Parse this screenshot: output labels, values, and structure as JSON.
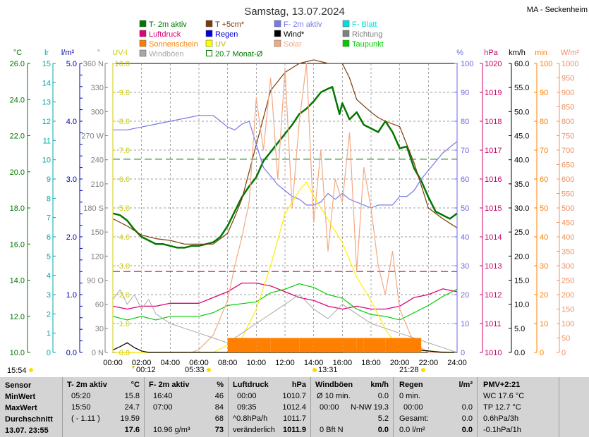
{
  "title": "Samstag, 13.07.2024",
  "station": "MA - Seckenheim",
  "legend": [
    {
      "label": "T- 2m aktiv",
      "color": "#007700",
      "style": "fill"
    },
    {
      "label": "T +5cm*",
      "color": "#7a3b0c",
      "style": "fill"
    },
    {
      "label": "F- 2m aktiv",
      "color": "#7878e8",
      "style": "fill"
    },
    {
      "label": "F- Blatt",
      "color": "#00dddd",
      "style": "fill"
    },
    {
      "label": "Luftdruck",
      "color": "#dd0077",
      "style": "fill"
    },
    {
      "label": "Regen",
      "color": "#0000dd",
      "style": "fill"
    },
    {
      "label": "Wind*",
      "color": "#000000",
      "style": "fill"
    },
    {
      "label": "Richtung",
      "color": "#808080",
      "style": "fill"
    },
    {
      "label": "Sonnenschein",
      "color": "#ff8000",
      "style": "fill"
    },
    {
      "label": "UV",
      "color": "#ffff00",
      "style": "fill"
    },
    {
      "label": "Solar",
      "color": "#f4a882",
      "style": "fill"
    },
    {
      "label": "Taupunkt",
      "color": "#00cc00",
      "style": "fill"
    },
    {
      "label": "Windböen",
      "color": "#a8a8a8",
      "style": "fill"
    },
    {
      "label": "20.7 Monat-Ø",
      "color": "#007700",
      "style": "outline"
    }
  ],
  "axis_headers": {
    "temp": "°C",
    "lr": "lr",
    "lm2": "l/m²",
    "dir": "°",
    "uv": "UV-I",
    "hum": "%",
    "hpa": "hPa",
    "kmh": "km/h",
    "min": "min",
    "wm2": "W/m²"
  },
  "axis_colors": {
    "temp": "#007700",
    "lr": "#00aaaa",
    "lm2": "#0000aa",
    "dir": "#808080",
    "uv": "#cccc00",
    "hum": "#6a6ae0",
    "hpa": "#cc0066",
    "kmh": "#000000",
    "min": "#ff8000",
    "wm2": "#f09060"
  },
  "axes": {
    "temp": [
      "26.0",
      "24.0",
      "22.0",
      "20.0",
      "18.0",
      "16.0",
      "14.0",
      "12.0",
      "10.0"
    ],
    "lr": [
      "15",
      "14",
      "13",
      "12",
      "11",
      "10",
      "9",
      "8",
      "7",
      "6",
      "5",
      "4",
      "3",
      "2",
      "1",
      "0"
    ],
    "lm2": [
      "5.0",
      "",
      "",
      "",
      "",
      "4.0",
      "",
      "",
      "",
      "",
      "3.0",
      "",
      "",
      "",
      "",
      "2.0",
      "",
      "",
      "",
      "",
      "1.0",
      "",
      "",
      "",
      "",
      "0.0"
    ],
    "dir": [
      "360 N",
      "330",
      "300",
      "270 W",
      "240",
      "210",
      "180 S",
      "150",
      "120",
      "90 O",
      "60",
      "30",
      "0 N"
    ],
    "uv": [
      "10.0",
      "9.0",
      "8.0",
      "7.0",
      "6.0",
      "5.0",
      "4.0",
      "3.0",
      "2.0",
      "1.0",
      "0.0"
    ],
    "hum": [
      "100",
      "90",
      "80",
      "70",
      "60",
      "50",
      "40",
      "30",
      "20",
      "10",
      "0"
    ],
    "hpa": [
      "1020",
      "1019",
      "1018",
      "1017",
      "1016",
      "1015",
      "1014",
      "1013",
      "1012",
      "1011",
      "1010"
    ],
    "kmh": [
      "60.0",
      "55.0",
      "50.0",
      "45.0",
      "40.0",
      "35.0",
      "30.0",
      "25.0",
      "20.0",
      "15.0",
      "10.0",
      "5.0",
      "0.0"
    ],
    "min": [
      "100",
      "90",
      "80",
      "70",
      "60",
      "50",
      "40",
      "30",
      "20",
      "10",
      "0"
    ],
    "wm2": [
      "1000",
      "950",
      "900",
      "850",
      "800",
      "750",
      "700",
      "650",
      "600",
      "550",
      "500",
      "450",
      "400",
      "350",
      "300",
      "250",
      "200",
      "150",
      "100",
      "50",
      "0"
    ]
  },
  "time_labels": [
    "00:00",
    "02:00",
    "04:00",
    "06:00",
    "08:00",
    "10:00",
    "12:00",
    "14:00",
    "16:00",
    "18:00",
    "20:00",
    "22:00",
    "24:00"
  ],
  "sun_events": {
    "now": "15:54",
    "moonrise": "00:12",
    "sunrise": "05:33",
    "noon": "13:31",
    "sunset": "21:28"
  },
  "chart_data": {
    "type": "line",
    "title": "Samstag, 13.07.2024",
    "x_unit": "hours",
    "xlim": [
      0,
      24
    ],
    "temp_ylim": [
      10,
      26
    ],
    "monthly_avg_temp": 20.7,
    "pressure_ref": 1012.8,
    "series": [
      {
        "name": "T- 2m aktiv",
        "axis": "temp",
        "x": [
          0,
          0.5,
          1,
          1.5,
          2,
          2.5,
          3,
          3.5,
          4,
          4.5,
          5,
          5.5,
          6,
          6.5,
          7,
          7.5,
          8,
          8.5,
          9,
          9.5,
          10,
          10.5,
          11,
          11.5,
          12,
          12.5,
          13,
          13.5,
          14,
          14.5,
          15,
          15.3,
          15.8,
          16,
          16.5,
          17,
          17.5,
          18,
          18.5,
          19,
          19.5,
          20,
          20.5,
          21,
          21.5,
          22,
          22.5,
          23,
          23.5,
          24
        ],
        "y": [
          17.7,
          17.6,
          17.3,
          16.8,
          16.4,
          16.2,
          16.0,
          16.0,
          15.9,
          15.8,
          15.8,
          15.9,
          15.9,
          16.0,
          16.1,
          16.4,
          17.0,
          17.8,
          18.6,
          19.2,
          19.7,
          20.6,
          21.1,
          21.6,
          22.1,
          22.6,
          23.2,
          23.5,
          23.9,
          24.4,
          24.6,
          24.7,
          23.2,
          23.8,
          22.9,
          23.3,
          22.6,
          22.4,
          22.2,
          22.8,
          22.2,
          21.3,
          21.4,
          20.2,
          19.5,
          18.6,
          17.8,
          17.6,
          17.4,
          17.7
        ]
      },
      {
        "name": "T +5cm*",
        "axis": "temp",
        "x": [
          0,
          1,
          2,
          3,
          4,
          5,
          6,
          7,
          8,
          8.5,
          9,
          9.5,
          10,
          10.5,
          11,
          12,
          13,
          14,
          15,
          16,
          16.5,
          17,
          18,
          18.5,
          19,
          20,
          21,
          22,
          23,
          24
        ],
        "y": [
          17.4,
          17.0,
          16.5,
          16.3,
          16.2,
          16.0,
          16.0,
          16.0,
          16.6,
          17.5,
          18.5,
          20.0,
          21.5,
          23.0,
          24.5,
          25.5,
          26.0,
          26.2,
          26.0,
          26.0,
          25.2,
          24.0,
          23.3,
          23.0,
          22.8,
          22.5,
          20.5,
          18.0,
          17.4,
          16.9
        ]
      },
      {
        "name": "F- 2m aktiv",
        "axis": "hum",
        "x": [
          0,
          1,
          2,
          3,
          4,
          5,
          6,
          7,
          7.5,
          8,
          8.5,
          9,
          9.5,
          10,
          10.5,
          11,
          11.5,
          12,
          12.5,
          13,
          13.5,
          14,
          14.5,
          15,
          15.5,
          16,
          16.5,
          17,
          17.5,
          18,
          18.5,
          19,
          19.5,
          20,
          20.5,
          21,
          21.5,
          22,
          22.5,
          23,
          23.5,
          24
        ],
        "y": [
          77,
          77,
          78,
          79,
          80,
          81,
          82,
          82,
          80,
          78,
          77,
          79,
          80,
          72,
          64,
          61,
          58,
          56,
          54,
          53,
          51,
          51,
          52,
          55,
          53,
          55,
          53,
          52,
          51,
          50,
          51,
          51,
          51,
          54,
          54,
          56,
          60,
          63,
          66,
          69,
          71,
          73
        ]
      },
      {
        "name": "Luftdruck",
        "axis": "hpa",
        "x": [
          0,
          1,
          2,
          3,
          4,
          5,
          6,
          7,
          8,
          9,
          10,
          11,
          12,
          13,
          14,
          15,
          16,
          17,
          18,
          19,
          20,
          21,
          22,
          23,
          24
        ],
        "y": [
          1011.6,
          1011.5,
          1011.6,
          1011.6,
          1011.7,
          1011.7,
          1011.7,
          1011.9,
          1012.1,
          1012.4,
          1012.4,
          1012.3,
          1012.1,
          1011.9,
          1011.8,
          1011.6,
          1011.5,
          1011.6,
          1011.5,
          1011.5,
          1011.6,
          1011.9,
          1012.0,
          1012.2,
          1012.1
        ]
      },
      {
        "name": "Taupunkt",
        "axis": "temp",
        "x": [
          0,
          1,
          2,
          3,
          4,
          5,
          6,
          7,
          8,
          9,
          10,
          11,
          12,
          13,
          14,
          15,
          16,
          17,
          18,
          19,
          20,
          21,
          22,
          23,
          24
        ],
        "y": [
          12.0,
          11.8,
          12.0,
          11.8,
          12.0,
          12.0,
          12.0,
          12.2,
          12.6,
          12.7,
          12.8,
          13.3,
          13.5,
          13.8,
          13.6,
          13.2,
          13.0,
          12.4,
          12.1,
          12.0,
          11.8,
          12.2,
          12.6,
          13.1,
          13.5
        ]
      },
      {
        "name": "Solar",
        "axis": "wm2",
        "x": [
          0,
          5.5,
          6,
          7,
          8,
          8.5,
          9,
          9.5,
          10,
          10.5,
          11,
          11.5,
          12,
          12.5,
          13,
          13.5,
          14,
          14.5,
          15,
          15.5,
          16,
          16.5,
          17,
          17.5,
          18,
          18.5,
          19,
          19.5,
          20,
          21,
          22,
          24
        ],
        "y": [
          0,
          0,
          10,
          60,
          180,
          300,
          400,
          520,
          880,
          700,
          950,
          600,
          980,
          500,
          800,
          1000,
          450,
          700,
          350,
          600,
          520,
          760,
          280,
          640,
          500,
          300,
          200,
          350,
          150,
          30,
          0,
          0
        ]
      },
      {
        "name": "UV",
        "axis": "uv",
        "x": [
          0,
          7,
          9,
          10,
          11,
          12,
          13,
          13.5,
          14,
          15,
          16,
          17,
          18,
          19,
          20,
          24
        ],
        "y": [
          0,
          0,
          0.5,
          1.5,
          3,
          4.8,
          5.6,
          5.9,
          5.4,
          4.6,
          3.8,
          2.6,
          1.8,
          0.8,
          0.1,
          0
        ]
      },
      {
        "name": "Wind*",
        "axis": "kmh",
        "x": [
          0,
          0.5,
          1,
          1.5,
          2,
          2.5,
          3,
          4,
          8,
          10,
          12,
          14,
          16,
          17,
          18,
          19,
          20,
          21,
          22,
          23,
          24
        ],
        "y": [
          0.5,
          1.2,
          2.0,
          1.0,
          0.3,
          0,
          0,
          0,
          0,
          0,
          0,
          0,
          0,
          0.5,
          1.0,
          0.8,
          1.2,
          0.6,
          0.3,
          0,
          0
        ]
      },
      {
        "name": "Windböen",
        "axis": "kmh",
        "x": [
          0,
          0.5,
          1,
          1.5,
          2,
          2.5,
          3,
          4,
          5,
          6,
          7,
          8,
          9,
          10,
          11,
          12,
          13,
          14,
          15,
          16,
          17,
          18,
          19,
          20,
          21,
          22,
          23,
          24
        ],
        "y": [
          11,
          13,
          10,
          12,
          9,
          11,
          8,
          6,
          5,
          4,
          3,
          2,
          4,
          6,
          8,
          10,
          12,
          9,
          7,
          10,
          8,
          6,
          5,
          4,
          3,
          2,
          1,
          0
        ]
      },
      {
        "name": "Sonnenschein",
        "axis": "min",
        "x": [
          8,
          10,
          10.5,
          11,
          12,
          13,
          14,
          15,
          16,
          17,
          17.5,
          18,
          19,
          20,
          21,
          21.5
        ],
        "y": [
          5,
          5,
          5,
          5,
          5,
          5,
          5,
          5,
          5,
          5,
          5,
          5,
          5,
          5,
          5,
          0
        ]
      }
    ]
  },
  "stats": {
    "sensor_col": {
      "header": "Sensor",
      "rows": [
        "MinWert",
        "MaxWert",
        "Durchschnitt",
        "13.07.  23:55"
      ]
    },
    "t2m": {
      "header": "T- 2m aktiv",
      "unit": "°C",
      "times": [
        "05:20",
        "15:50",
        "( - 1.11 )",
        ""
      ],
      "values": [
        "15.8",
        "24.7",
        "19.59",
        "17.6"
      ]
    },
    "f2m": {
      "header": "F- 2m aktiv",
      "unit": "%",
      "times": [
        "16:40",
        "07:00",
        "",
        "10.96 g/m³"
      ],
      "values": [
        "46",
        "84",
        "68",
        "73"
      ]
    },
    "pressure": {
      "header": "Luftdruck",
      "unit": "hPa",
      "times": [
        "00:00",
        "09:35",
        "^0.8hPa/h",
        "veränderlich"
      ],
      "values": [
        "1010.7",
        "1012.4",
        "1011.7",
        "1011.9"
      ]
    },
    "gusts": {
      "header": "Windböen",
      "unit": "km/h",
      "times": [
        "Ø 10 min.",
        "00:00",
        "",
        "0 Bft N"
      ],
      "mid": [
        "",
        "N-NW",
        "",
        ""
      ],
      "values": [
        "0.0",
        "19.3",
        "5.2",
        "0.0"
      ]
    },
    "rain": {
      "header": "Regen",
      "unit": "l/m²",
      "times": [
        "0 min.",
        "00:00",
        "Gesamt:",
        "0.0 l/m²"
      ],
      "values": [
        "",
        "0.0",
        "0.0",
        "0.0"
      ]
    },
    "pmv": {
      "header": "PMV+2:21",
      "lines": [
        "WC 17.6 °C",
        "TP 12.7 °C",
        "0.6hPa/3h",
        "-0.1hPa/1h"
      ]
    }
  }
}
